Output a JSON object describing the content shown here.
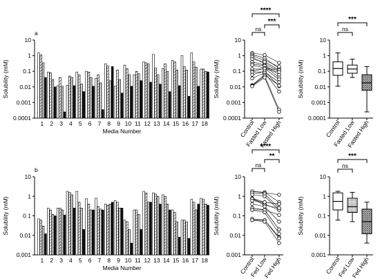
{
  "figure": {
    "colors": {
      "ink": "#000000",
      "bar_open": "#ffffff",
      "bar_hatch": "#9a9a9a",
      "bar_solid": "#111111",
      "box_stipple": "#555555"
    }
  },
  "chart_data": [
    {
      "type": "bar",
      "panel_label": "a",
      "xlabel": "Media Number",
      "ylabel": "Solubility (mM)",
      "yscale": "log",
      "ylim": [
        0.0001,
        10
      ],
      "yticks": [
        "0.0001",
        "0.001",
        "0.01",
        "0.1",
        "1",
        "10"
      ],
      "categories": [
        "1",
        "2",
        "3",
        "4",
        "5",
        "6",
        "7",
        "8",
        "9",
        "10",
        "11",
        "12",
        "13",
        "14",
        "15",
        "16",
        "17",
        "18"
      ],
      "series": [
        {
          "style": "open",
          "values": [
            1.5,
            0.09,
            0.012,
            0.013,
            0.09,
            0.1,
            0.035,
            0.3,
            0.011,
            0.25,
            0.06,
            0.4,
            1.2,
            0.15,
            0.5,
            1.0,
            1.5,
            0.14
          ]
        },
        {
          "style": "hatch",
          "values": [
            1.1,
            0.08,
            0.04,
            0.05,
            0.06,
            0.09,
            0.06,
            0.22,
            0.12,
            0.15,
            0.1,
            0.35,
            0.16,
            0.3,
            0.4,
            0.2,
            0.4,
            0.14
          ]
        },
        {
          "style": "dotted",
          "values": [
            0.35,
            0.03,
            0.011,
            0.04,
            0.015,
            0.04,
            0.018,
            0.025,
            0.03,
            0.06,
            0.07,
            0.3,
            0.06,
            0.1,
            0.12,
            0.12,
            0.18,
            0.1
          ]
        },
        {
          "style": "solid",
          "values": [
            0.04,
            0.01,
            0.00025,
            0.012,
            0.005,
            0.011,
            0.00035,
            0.2,
            0.004,
            0.011,
            0.025,
            0.02,
            0.015,
            0.005,
            0.012,
            0.0025,
            0.011,
            0.09
          ]
        }
      ]
    },
    {
      "type": "scatter",
      "categories": [
        "Control",
        "Fasted Low",
        "Fasted High"
      ],
      "ylabel": "Solubility (mM)",
      "yscale": "log",
      "ylim": [
        0.0001,
        10
      ],
      "yticks": [
        "0.0001",
        "0.001",
        "0.01",
        "0.1",
        "1",
        "10"
      ],
      "paired_lines": true,
      "values": [
        [
          1.5,
          1.1,
          0.35
        ],
        [
          1.2,
          0.7,
          0.15
        ],
        [
          1.0,
          0.5,
          0.2
        ],
        [
          0.8,
          0.3,
          0.1
        ],
        [
          0.6,
          0.4,
          0.12
        ],
        [
          0.4,
          0.25,
          0.06
        ],
        [
          0.3,
          0.22,
          0.04
        ],
        [
          0.25,
          0.16,
          0.12
        ],
        [
          0.14,
          0.14,
          0.09
        ],
        [
          0.1,
          0.15,
          0.03
        ],
        [
          0.09,
          0.09,
          0.02
        ],
        [
          0.06,
          0.1,
          0.011
        ],
        [
          0.035,
          0.08,
          0.005
        ],
        [
          0.013,
          0.06,
          0.012
        ],
        [
          0.012,
          0.05,
          0.00035
        ],
        [
          0.011,
          0.04,
          0.00025
        ]
      ],
      "significance": [
        {
          "from": "Control",
          "to": "Fasted High",
          "label": "****"
        },
        {
          "from": "Control",
          "to": "Fasted Low",
          "label": "ns"
        },
        {
          "from": "Fasted Low",
          "to": "Fasted High",
          "label": "***"
        }
      ]
    },
    {
      "type": "box",
      "categories": [
        "Control",
        "Fasted Low",
        "Fasted High"
      ],
      "ylabel": "Solubility (mM)",
      "yscale": "log",
      "ylim": [
        0.0001,
        10
      ],
      "yticks": [
        "0.0001",
        "0.001",
        "0.01",
        "0.1",
        "1",
        "10"
      ],
      "boxes": [
        {
          "min": 0.011,
          "q1": 0.055,
          "median": 0.15,
          "q3": 0.4,
          "max": 1.5,
          "fill": "open"
        },
        {
          "min": 0.04,
          "q1": 0.075,
          "median": 0.14,
          "q3": 0.25,
          "max": 0.6,
          "fill": "open"
        },
        {
          "min": 0.00025,
          "q1": 0.006,
          "median": 0.018,
          "q3": 0.06,
          "max": 0.2,
          "fill": "stipple"
        }
      ],
      "significance": [
        {
          "from": "Control",
          "to": "Fasted High",
          "label": "***"
        },
        {
          "from": "Control",
          "to": "Fasted Low",
          "label": "ns"
        }
      ]
    },
    {
      "type": "bar",
      "panel_label": "b",
      "xlabel": "Media Number",
      "ylabel": "Solubility (mM)",
      "yscale": "log",
      "ylim": [
        0.001,
        10
      ],
      "yticks": [
        "0.001",
        "0.01",
        "0.1",
        "1",
        "10"
      ],
      "categories": [
        "1",
        "2",
        "3",
        "4",
        "5",
        "6",
        "7",
        "8",
        "9",
        "10",
        "11",
        "12",
        "13",
        "14",
        "15",
        "16",
        "17",
        "18"
      ],
      "series": [
        {
          "style": "open",
          "values": [
            0.07,
            0.25,
            0.25,
            1.8,
            1.8,
            0.75,
            0.8,
            0.4,
            0.6,
            0.06,
            0.2,
            1.8,
            1.5,
            1.2,
            0.2,
            0.06,
            0.7,
            0.8
          ]
        },
        {
          "style": "hatch",
          "values": [
            0.06,
            0.2,
            0.25,
            1.6,
            0.5,
            0.4,
            0.3,
            0.35,
            0.5,
            0.05,
            0.2,
            1.5,
            1.3,
            1.0,
            0.15,
            0.06,
            0.5,
            0.7
          ]
        },
        {
          "style": "dotted",
          "values": [
            0.03,
            0.12,
            0.2,
            1.2,
            0.25,
            0.2,
            0.22,
            0.4,
            0.25,
            0.02,
            0.12,
            0.5,
            1.0,
            0.4,
            0.05,
            0.05,
            0.2,
            0.4
          ]
        },
        {
          "style": "solid",
          "values": [
            0.012,
            0.1,
            0.11,
            0.25,
            0.02,
            0.2,
            0.2,
            0.5,
            0.25,
            0.004,
            0.02,
            0.5,
            0.4,
            0.2,
            0.008,
            0.007,
            0.4,
            0.35
          ]
        }
      ]
    },
    {
      "type": "scatter",
      "categories": [
        "Control",
        "Fed Low",
        "Fed High"
      ],
      "ylabel": "Solubility (mM)",
      "yscale": "log",
      "ylim": [
        0.001,
        10
      ],
      "yticks": [
        "0.001",
        "0.01",
        "0.1",
        "1",
        "10"
      ],
      "paired_lines": true,
      "values": [
        [
          1.8,
          1.6,
          0.5
        ],
        [
          1.8,
          1.5,
          1.2
        ],
        [
          1.5,
          1.3,
          0.25
        ],
        [
          1.2,
          1.0,
          0.2
        ],
        [
          0.8,
          0.5,
          0.4
        ],
        [
          0.8,
          0.4,
          0.2
        ],
        [
          0.75,
          0.35,
          0.25
        ],
        [
          0.6,
          0.5,
          0.4
        ],
        [
          0.4,
          0.3,
          0.05
        ],
        [
          0.25,
          0.2,
          0.11
        ],
        [
          0.25,
          0.2,
          0.02
        ],
        [
          0.2,
          0.2,
          0.02
        ],
        [
          0.2,
          0.15,
          0.012
        ],
        [
          0.07,
          0.06,
          0.008
        ],
        [
          0.06,
          0.06,
          0.007
        ],
        [
          0.06,
          0.05,
          0.004
        ]
      ],
      "significance": [
        {
          "from": "Control",
          "to": "Fed High",
          "label": "****"
        },
        {
          "from": "Control",
          "to": "Fed Low",
          "label": "ns"
        },
        {
          "from": "Fed Low",
          "to": "Fed High",
          "label": "**"
        }
      ]
    },
    {
      "type": "box",
      "categories": [
        "Control",
        "Fed Low",
        "Fed High"
      ],
      "ylabel": "Solubility (mM)",
      "yscale": "log",
      "ylim": [
        0.001,
        10
      ],
      "yticks": [
        "0.001",
        "0.01",
        "0.1",
        "1",
        "10"
      ],
      "boxes": [
        {
          "min": 0.06,
          "q1": 0.2,
          "median": 0.55,
          "q3": 1.5,
          "max": 1.8,
          "fill": "open"
        },
        {
          "min": 0.05,
          "q1": 0.15,
          "median": 0.3,
          "q3": 0.8,
          "max": 1.6,
          "fill": "dotted"
        },
        {
          "min": 0.004,
          "q1": 0.012,
          "median": 0.05,
          "q3": 0.22,
          "max": 0.5,
          "fill": "stipple"
        }
      ],
      "significance": [
        {
          "from": "Control",
          "to": "Fed High",
          "label": "***"
        },
        {
          "from": "Control",
          "to": "Fed Low",
          "label": "ns"
        }
      ]
    }
  ]
}
